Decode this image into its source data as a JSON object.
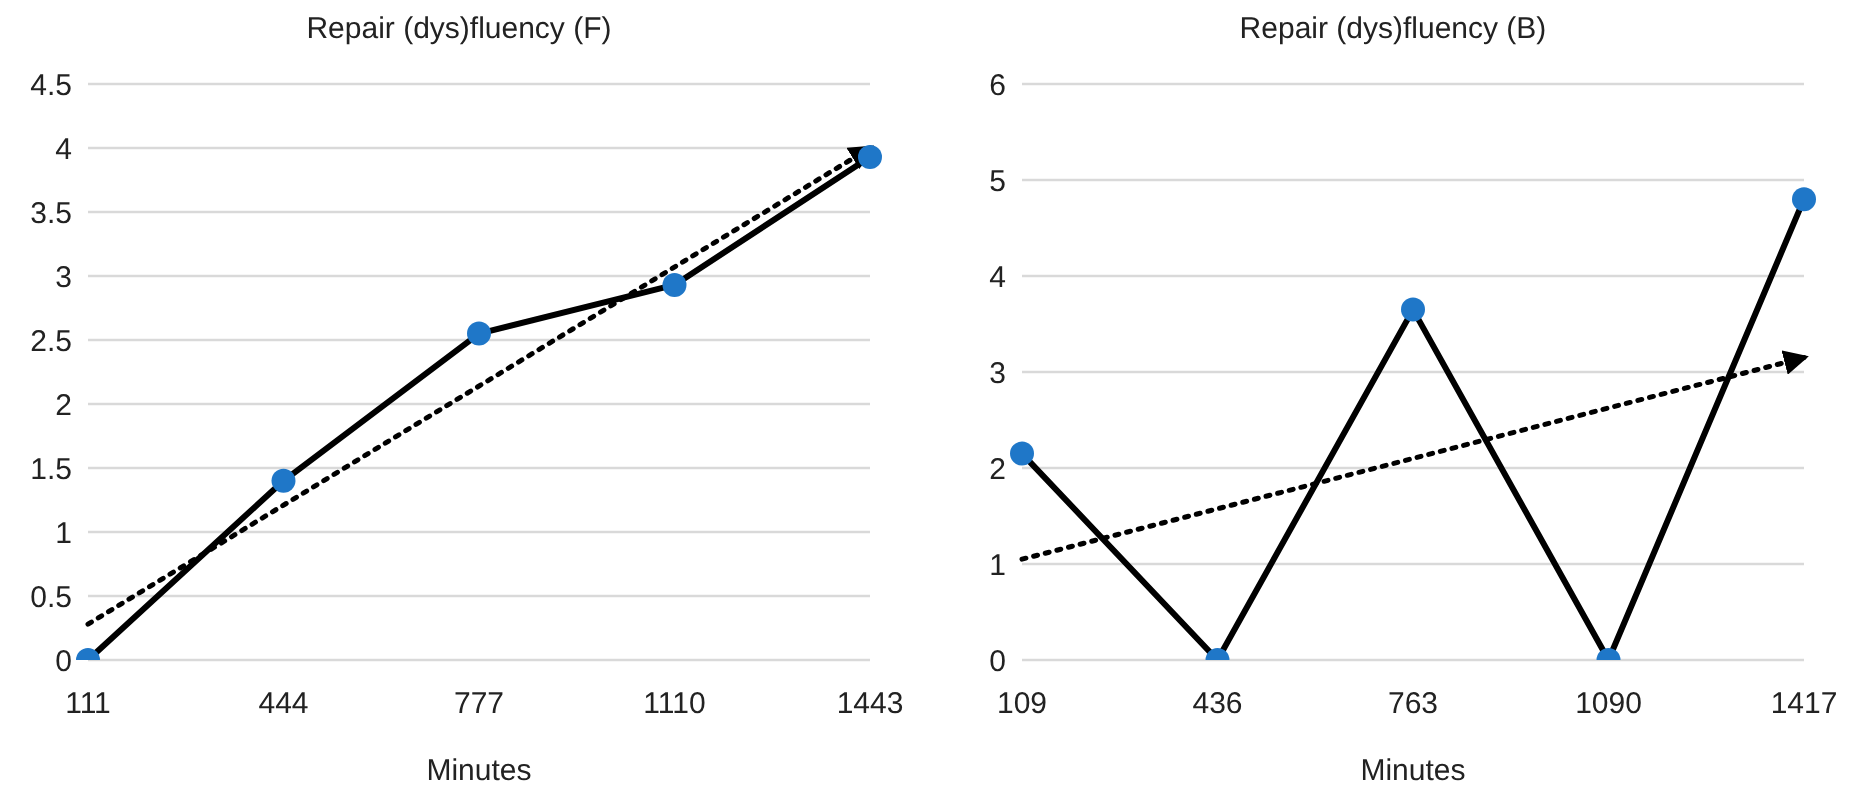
{
  "chart_data": [
    {
      "type": "line",
      "title": "Repair (dys)fluency (F)",
      "xlabel": "Minutes",
      "categories": [
        "111",
        "444",
        "777",
        "1110",
        "1443"
      ],
      "ylim": [
        0,
        4.5
      ],
      "yticks": [
        0,
        0.5,
        1,
        1.5,
        2,
        2.5,
        3,
        3.5,
        4,
        4.5
      ],
      "grid": "y",
      "legend": false,
      "series": [
        {
          "color": "#000000",
          "colors": [
            "#1f77c8",
            "#1f77c8",
            "#1f77c8",
            "#1f77c8",
            "#1f77c8"
          ],
          "marker": "circle",
          "line_style": "solid",
          "values": [
            0,
            1.4,
            2.55,
            2.93,
            3.93
          ]
        },
        {
          "color": "#000000",
          "marker": "none",
          "line_style": "dotted",
          "values": [
            0.28,
            null,
            null,
            null,
            4.0
          ]
        }
      ]
    },
    {
      "type": "line",
      "title": "Repair (dys)fluency (B)",
      "xlabel": "Minutes",
      "categories": [
        "109",
        "436",
        "763",
        "1090",
        "1417"
      ],
      "ylim": [
        0,
        6
      ],
      "yticks": [
        0,
        1,
        2,
        3,
        4,
        5,
        6
      ],
      "grid": "y",
      "legend": false,
      "series": [
        {
          "color": "#000000",
          "colors": [
            "#1f77c8",
            "#1f77c8",
            "#1f77c8",
            "#1f77c8",
            "#1f77c8"
          ],
          "marker": "circle",
          "line_style": "solid",
          "values": [
            2.15,
            0,
            3.65,
            0,
            4.8
          ]
        },
        {
          "color": "#000000",
          "marker": "none",
          "line_style": "dotted",
          "values": [
            1.05,
            null,
            null,
            null,
            3.15
          ]
        }
      ]
    }
  ]
}
